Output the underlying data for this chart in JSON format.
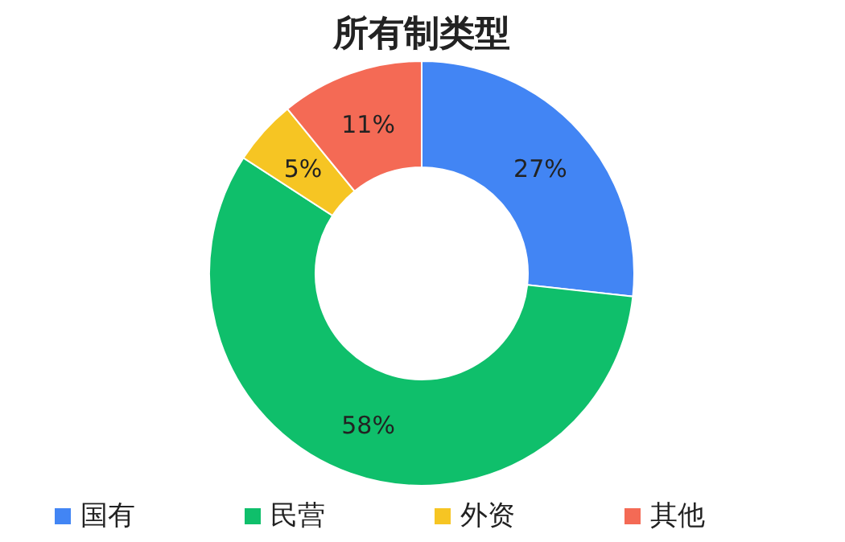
{
  "chart_data": {
    "type": "donut",
    "title": "所有制类型",
    "categories": [
      "国有",
      "民营",
      "外资",
      "其他"
    ],
    "values": [
      27,
      58,
      5,
      11
    ],
    "colors": [
      "#4285f4",
      "#0fbf6b",
      "#f6c523",
      "#f46a55"
    ],
    "value_labels": [
      "27%",
      "58%",
      "5%",
      "11%"
    ],
    "legend": "bottom"
  }
}
